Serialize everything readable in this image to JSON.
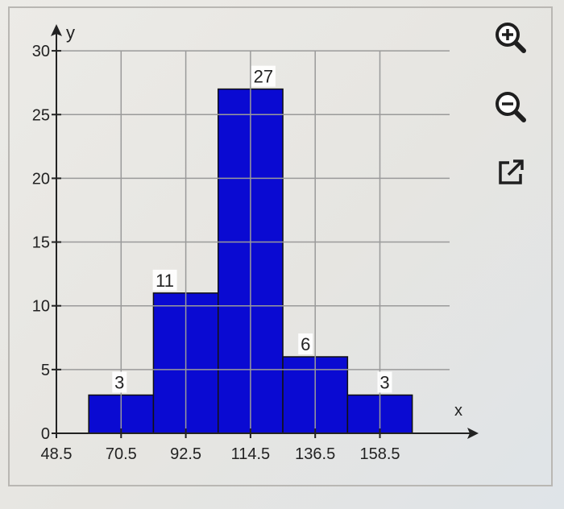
{
  "chart_data": {
    "type": "bar",
    "bins": [
      {
        "from": 59.5,
        "to": 81.5,
        "value": 3
      },
      {
        "from": 81.5,
        "to": 103.5,
        "value": 11
      },
      {
        "from": 103.5,
        "to": 125.5,
        "value": 27
      },
      {
        "from": 125.5,
        "to": 147.5,
        "value": 6
      },
      {
        "from": 147.5,
        "to": 169.5,
        "value": 3
      }
    ],
    "data_labels": [
      "3",
      "11",
      "27",
      "6",
      "3"
    ],
    "x_ticks": [
      48.5,
      70.5,
      92.5,
      114.5,
      136.5,
      158.5
    ],
    "x_tick_labels": [
      "48.5",
      "70.5",
      "92.5",
      "114.5",
      "136.5",
      "158.5"
    ],
    "y_ticks": [
      0,
      5,
      10,
      15,
      20,
      25,
      30
    ],
    "y_tick_labels": [
      "0",
      "5",
      "10",
      "15",
      "20",
      "25",
      "30"
    ],
    "xlim": [
      48.5,
      180
    ],
    "ylim": [
      0,
      31
    ],
    "xlabel": "x",
    "ylabel": "y",
    "grid": true,
    "bar_color": "#0a0ad2",
    "title": ""
  },
  "toolbar": {
    "zoom_in_icon": "zoom-in-icon",
    "zoom_out_icon": "zoom-out-icon",
    "open_external_icon": "external-link-icon"
  }
}
